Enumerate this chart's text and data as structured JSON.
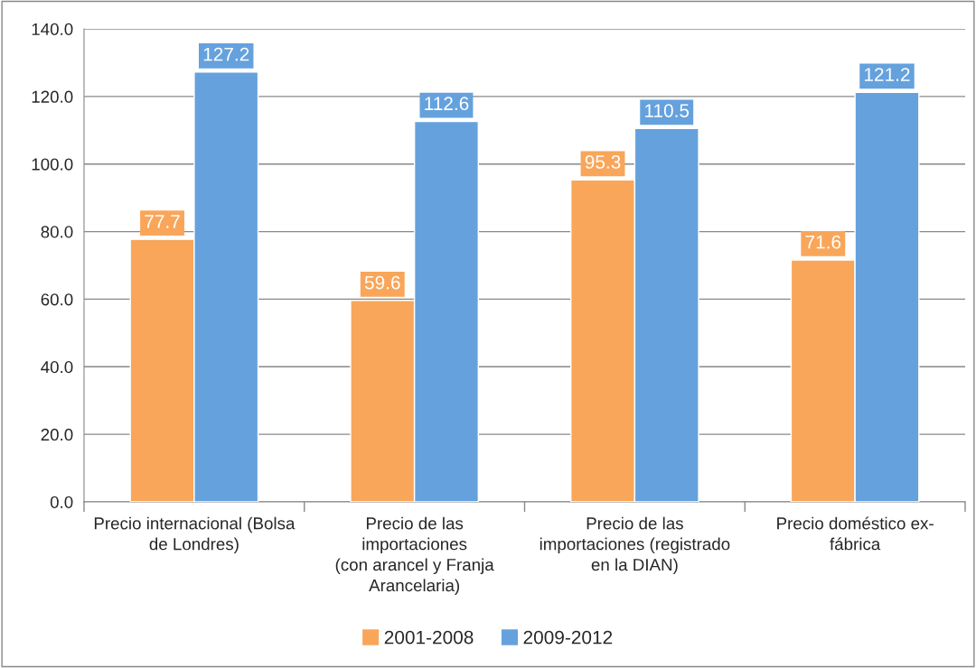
{
  "chart_data": {
    "type": "bar",
    "categories": [
      "Precio internacional (Bolsa\nde Londres)",
      "Precio de las\nimportaciones\n(con arancel y Franja\nArancelaria)",
      "Precio de las\nimportaciones (registrado\nen la DIAN)",
      "Precio doméstico ex-\nfábrica"
    ],
    "series": [
      {
        "name": "2001-2008",
        "color": "#f9a65a",
        "values": [
          77.7,
          59.6,
          95.3,
          71.6
        ]
      },
      {
        "name": "2009-2012",
        "color": "#65a1dd",
        "values": [
          127.2,
          112.6,
          110.5,
          121.2
        ]
      }
    ],
    "ylim": [
      0,
      140
    ],
    "yticks": [
      {
        "value": 0,
        "label": "0.0"
      },
      {
        "value": 20,
        "label": "20.0"
      },
      {
        "value": 40,
        "label": "40.0"
      },
      {
        "value": 60,
        "label": "60.0"
      },
      {
        "value": 80,
        "label": "80.0"
      },
      {
        "value": 100,
        "label": "100.0"
      },
      {
        "value": 120,
        "label": "120.0"
      },
      {
        "value": 140,
        "label": "140.0"
      }
    ],
    "grid": "y",
    "legend": "bottom",
    "data_labels": true
  }
}
